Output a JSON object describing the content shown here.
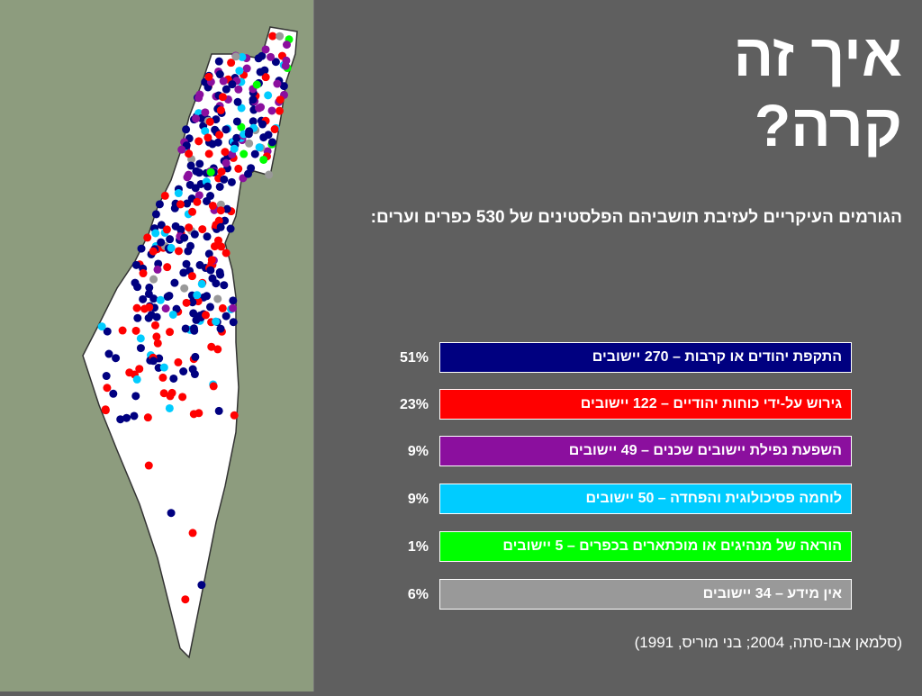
{
  "title_lines": [
    "איך זה",
    "קרה?"
  ],
  "subtitle": "הגורמים העיקריים לעזיבת תושביהם הפלסטינים של 530 כפרים וערים:",
  "items": [
    {
      "percent": "51%",
      "label": "התקפת יהודים או קרבות – 270 יישובים",
      "color": "#000080"
    },
    {
      "percent": "23%",
      "label": "גירוש על-ידי כוחות יהודיים – 122 יישובים",
      "color": "#ff0000"
    },
    {
      "percent": "9%",
      "label": "השפעת נפילת יישובים שכנים – 49 יישובים",
      "color": "#8b0f9e"
    },
    {
      "percent": "9%",
      "label": "לוחמה פסיכולוגית והפחדה – 50 יישובים",
      "color": "#00ccff"
    },
    {
      "percent": "1%",
      "label": "הוראה של מנהיגים או מוכתארים בכפרים – 5 יישובים",
      "color": "#00ff00"
    },
    {
      "percent": "6%",
      "label": "אין מידע – 34 יישובים",
      "color": "#999999"
    }
  ],
  "source": "(סלמאן אבו-סתה, 2004; בני מוריס, 1991)"
}
